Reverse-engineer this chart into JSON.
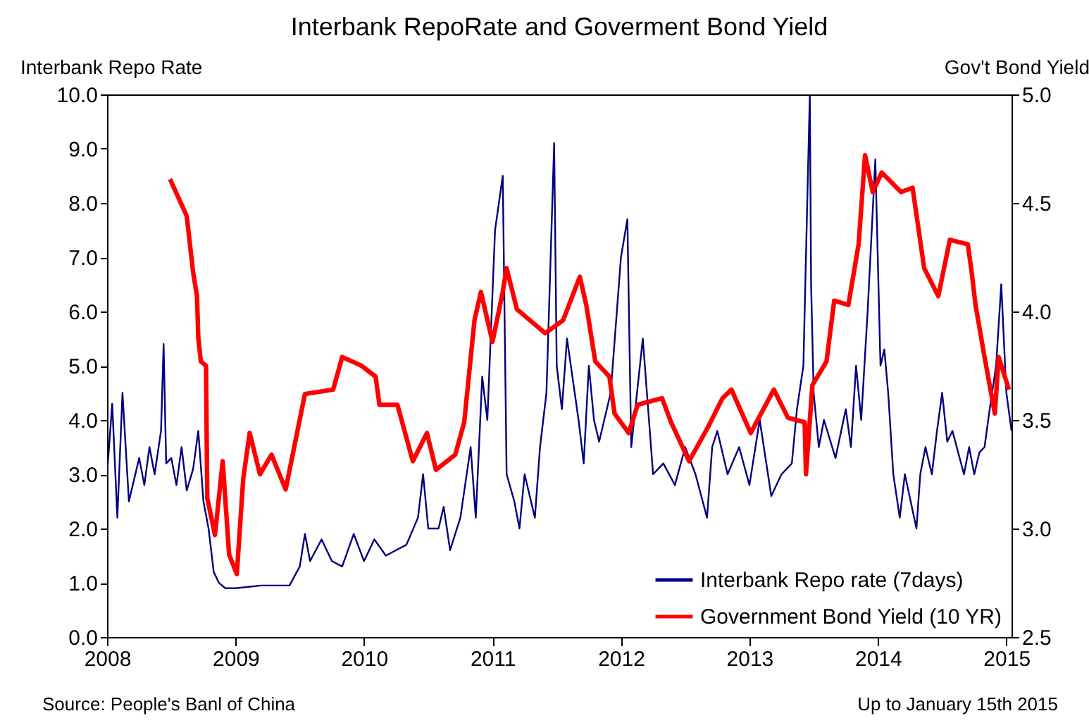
{
  "chart_data": {
    "type": "line",
    "title": "Interbank RepoRate and Goverment Bond Yield",
    "ylabel": "Interbank  Repo Rate",
    "y2label": "Gov't Bond Yield",
    "annotations": [
      "Source:  People's Banl of China",
      "Up to January 15th 2015"
    ],
    "xlim": [
      2008,
      2015.04
    ],
    "xticks": [
      2008,
      2009,
      2010,
      2011,
      2012,
      2013,
      2014,
      2015
    ],
    "ylim": [
      0,
      10
    ],
    "yticks": [
      {
        "value": 0,
        "label": "0.0"
      },
      {
        "value": 1,
        "label": "1.0"
      },
      {
        "value": 2,
        "label": "2.0"
      },
      {
        "value": 3,
        "label": "3.0"
      },
      {
        "value": 4,
        "label": "4.0"
      },
      {
        "value": 5,
        "label": "5.0"
      },
      {
        "value": 6,
        "label": "6.0"
      },
      {
        "value": 7,
        "label": "7.0"
      },
      {
        "value": 8,
        "label": "8.0"
      },
      {
        "value": 9,
        "label": "9.0"
      },
      {
        "value": 10,
        "label": "10.0"
      }
    ],
    "y2lim": [
      2.5,
      5.0
    ],
    "y2ticks": [
      2.5,
      {
        "value": 3,
        "label": "3.0"
      },
      3.5,
      {
        "value": 4,
        "label": "4.0"
      },
      4.5,
      {
        "value": 5,
        "label": "5.0"
      }
    ],
    "grid": false,
    "legend": "bottom right",
    "series": [
      {
        "name": "Interbank Repo rate (7days)",
        "color": "#000080",
        "x": [
          2008.0,
          2008.04,
          2008.08,
          2008.12,
          2008.17,
          2008.25,
          2008.29,
          2008.33,
          2008.37,
          2008.42,
          2008.44,
          2008.46,
          2008.5,
          2008.54,
          2008.58,
          2008.62,
          2008.67,
          2008.71,
          2008.75,
          2008.79,
          2008.83,
          2008.87,
          2008.92,
          2009.0,
          2009.2,
          2009.42,
          2009.5,
          2009.54,
          2009.58,
          2009.67,
          2009.75,
          2009.83,
          2009.92,
          2010.0,
          2010.08,
          2010.17,
          2010.25,
          2010.33,
          2010.42,
          2010.46,
          2010.5,
          2010.58,
          2010.62,
          2010.67,
          2010.75,
          2010.83,
          2010.87,
          2010.92,
          2010.96,
          2011.02,
          2011.08,
          2011.11,
          2011.17,
          2011.21,
          2011.25,
          2011.33,
          2011.37,
          2011.42,
          2011.48,
          2011.5,
          2011.54,
          2011.58,
          2011.67,
          2011.71,
          2011.75,
          2011.79,
          2011.83,
          2011.92,
          2012.0,
          2012.05,
          2012.08,
          2012.17,
          2012.25,
          2012.33,
          2012.42,
          2012.5,
          2012.58,
          2012.67,
          2012.71,
          2012.75,
          2012.83,
          2012.92,
          2013.0,
          2013.08,
          2013.17,
          2013.25,
          2013.33,
          2013.37,
          2013.42,
          2013.45,
          2013.47,
          2013.48,
          2013.5,
          2013.54,
          2013.58,
          2013.67,
          2013.75,
          2013.79,
          2013.83,
          2013.87,
          2013.92,
          2013.98,
          2014.02,
          2014.05,
          2014.08,
          2014.12,
          2014.17,
          2014.21,
          2014.3,
          2014.33,
          2014.37,
          2014.42,
          2014.46,
          2014.5,
          2014.54,
          2014.58,
          2014.67,
          2014.71,
          2014.75,
          2014.79,
          2014.83,
          2014.87,
          2014.92,
          2014.96,
          2015.0,
          2015.04
        ],
        "values": [
          3.0,
          4.3,
          2.2,
          4.5,
          2.5,
          3.3,
          2.8,
          3.5,
          3.0,
          3.8,
          5.4,
          3.2,
          3.3,
          2.8,
          3.5,
          2.7,
          3.1,
          3.8,
          2.5,
          2.0,
          1.2,
          1.0,
          0.9,
          0.9,
          0.95,
          0.95,
          1.3,
          1.9,
          1.4,
          1.8,
          1.4,
          1.3,
          1.9,
          1.4,
          1.8,
          1.5,
          1.6,
          1.7,
          2.2,
          3.0,
          2.0,
          2.0,
          2.4,
          1.6,
          2.2,
          3.5,
          2.2,
          4.8,
          4.0,
          7.5,
          8.5,
          3.0,
          2.5,
          2.0,
          3.0,
          2.2,
          3.5,
          4.5,
          9.1,
          5.0,
          4.2,
          5.5,
          4.0,
          3.2,
          5.0,
          4.0,
          3.6,
          4.5,
          7.0,
          7.7,
          3.5,
          5.5,
          3.0,
          3.2,
          2.8,
          3.5,
          3.0,
          2.2,
          3.5,
          3.8,
          3.0,
          3.5,
          2.8,
          4.0,
          2.6,
          3.0,
          3.2,
          4.2,
          5.0,
          8.0,
          10.0,
          6.5,
          4.5,
          3.5,
          4.0,
          3.3,
          4.2,
          3.5,
          5.0,
          4.0,
          6.0,
          8.8,
          5.0,
          5.3,
          4.5,
          3.0,
          2.2,
          3.0,
          2.0,
          3.0,
          3.5,
          3.0,
          3.8,
          4.5,
          3.6,
          3.8,
          3.0,
          3.5,
          3.0,
          3.4,
          3.5,
          4.2,
          5.0,
          6.5,
          4.5,
          3.8
        ]
      },
      {
        "name": "Government Bond Yield (10 YR)",
        "color": "#ff0000",
        "axis": "y2",
        "x": [
          2008.49,
          2008.62,
          2008.67,
          2008.7,
          2008.71,
          2008.73,
          2008.77,
          2008.78,
          2008.84,
          2008.9,
          2008.95,
          2009.01,
          2009.06,
          2009.11,
          2009.19,
          2009.28,
          2009.39,
          2009.54,
          2009.76,
          2009.83,
          2009.98,
          2010.09,
          2010.12,
          2010.26,
          2010.38,
          2010.49,
          2010.56,
          2010.71,
          2010.78,
          2010.86,
          2010.91,
          2011.0,
          2011.08,
          2011.11,
          2011.19,
          2011.41,
          2011.55,
          2011.68,
          2011.73,
          2011.8,
          2011.91,
          2011.95,
          2012.06,
          2012.13,
          2012.32,
          2012.39,
          2012.53,
          2012.68,
          2012.79,
          2012.86,
          2013.01,
          2013.19,
          2013.3,
          2013.43,
          2013.44,
          2013.49,
          2013.6,
          2013.66,
          2013.77,
          2013.85,
          2013.9,
          2013.96,
          2014.03,
          2014.18,
          2014.27,
          2014.36,
          2014.47,
          2014.56,
          2014.7,
          2014.73,
          2014.76,
          2014.83,
          2014.91,
          2014.94,
          2015.02
        ],
        "values": [
          4.61,
          4.44,
          4.18,
          4.07,
          3.88,
          3.77,
          3.75,
          3.14,
          2.97,
          3.31,
          2.88,
          2.79,
          3.23,
          3.44,
          3.25,
          3.34,
          3.18,
          3.62,
          3.64,
          3.79,
          3.75,
          3.7,
          3.57,
          3.57,
          3.31,
          3.44,
          3.27,
          3.34,
          3.49,
          3.96,
          4.09,
          3.86,
          4.09,
          4.2,
          4.01,
          3.9,
          3.96,
          4.16,
          4.03,
          3.77,
          3.7,
          3.53,
          3.44,
          3.57,
          3.6,
          3.49,
          3.31,
          3.47,
          3.6,
          3.64,
          3.44,
          3.64,
          3.51,
          3.49,
          3.25,
          3.66,
          3.77,
          4.05,
          4.03,
          4.31,
          4.72,
          4.55,
          4.64,
          4.55,
          4.57,
          4.2,
          4.07,
          4.33,
          4.31,
          4.18,
          4.03,
          3.79,
          3.53,
          3.79,
          3.64
        ]
      }
    ]
  }
}
